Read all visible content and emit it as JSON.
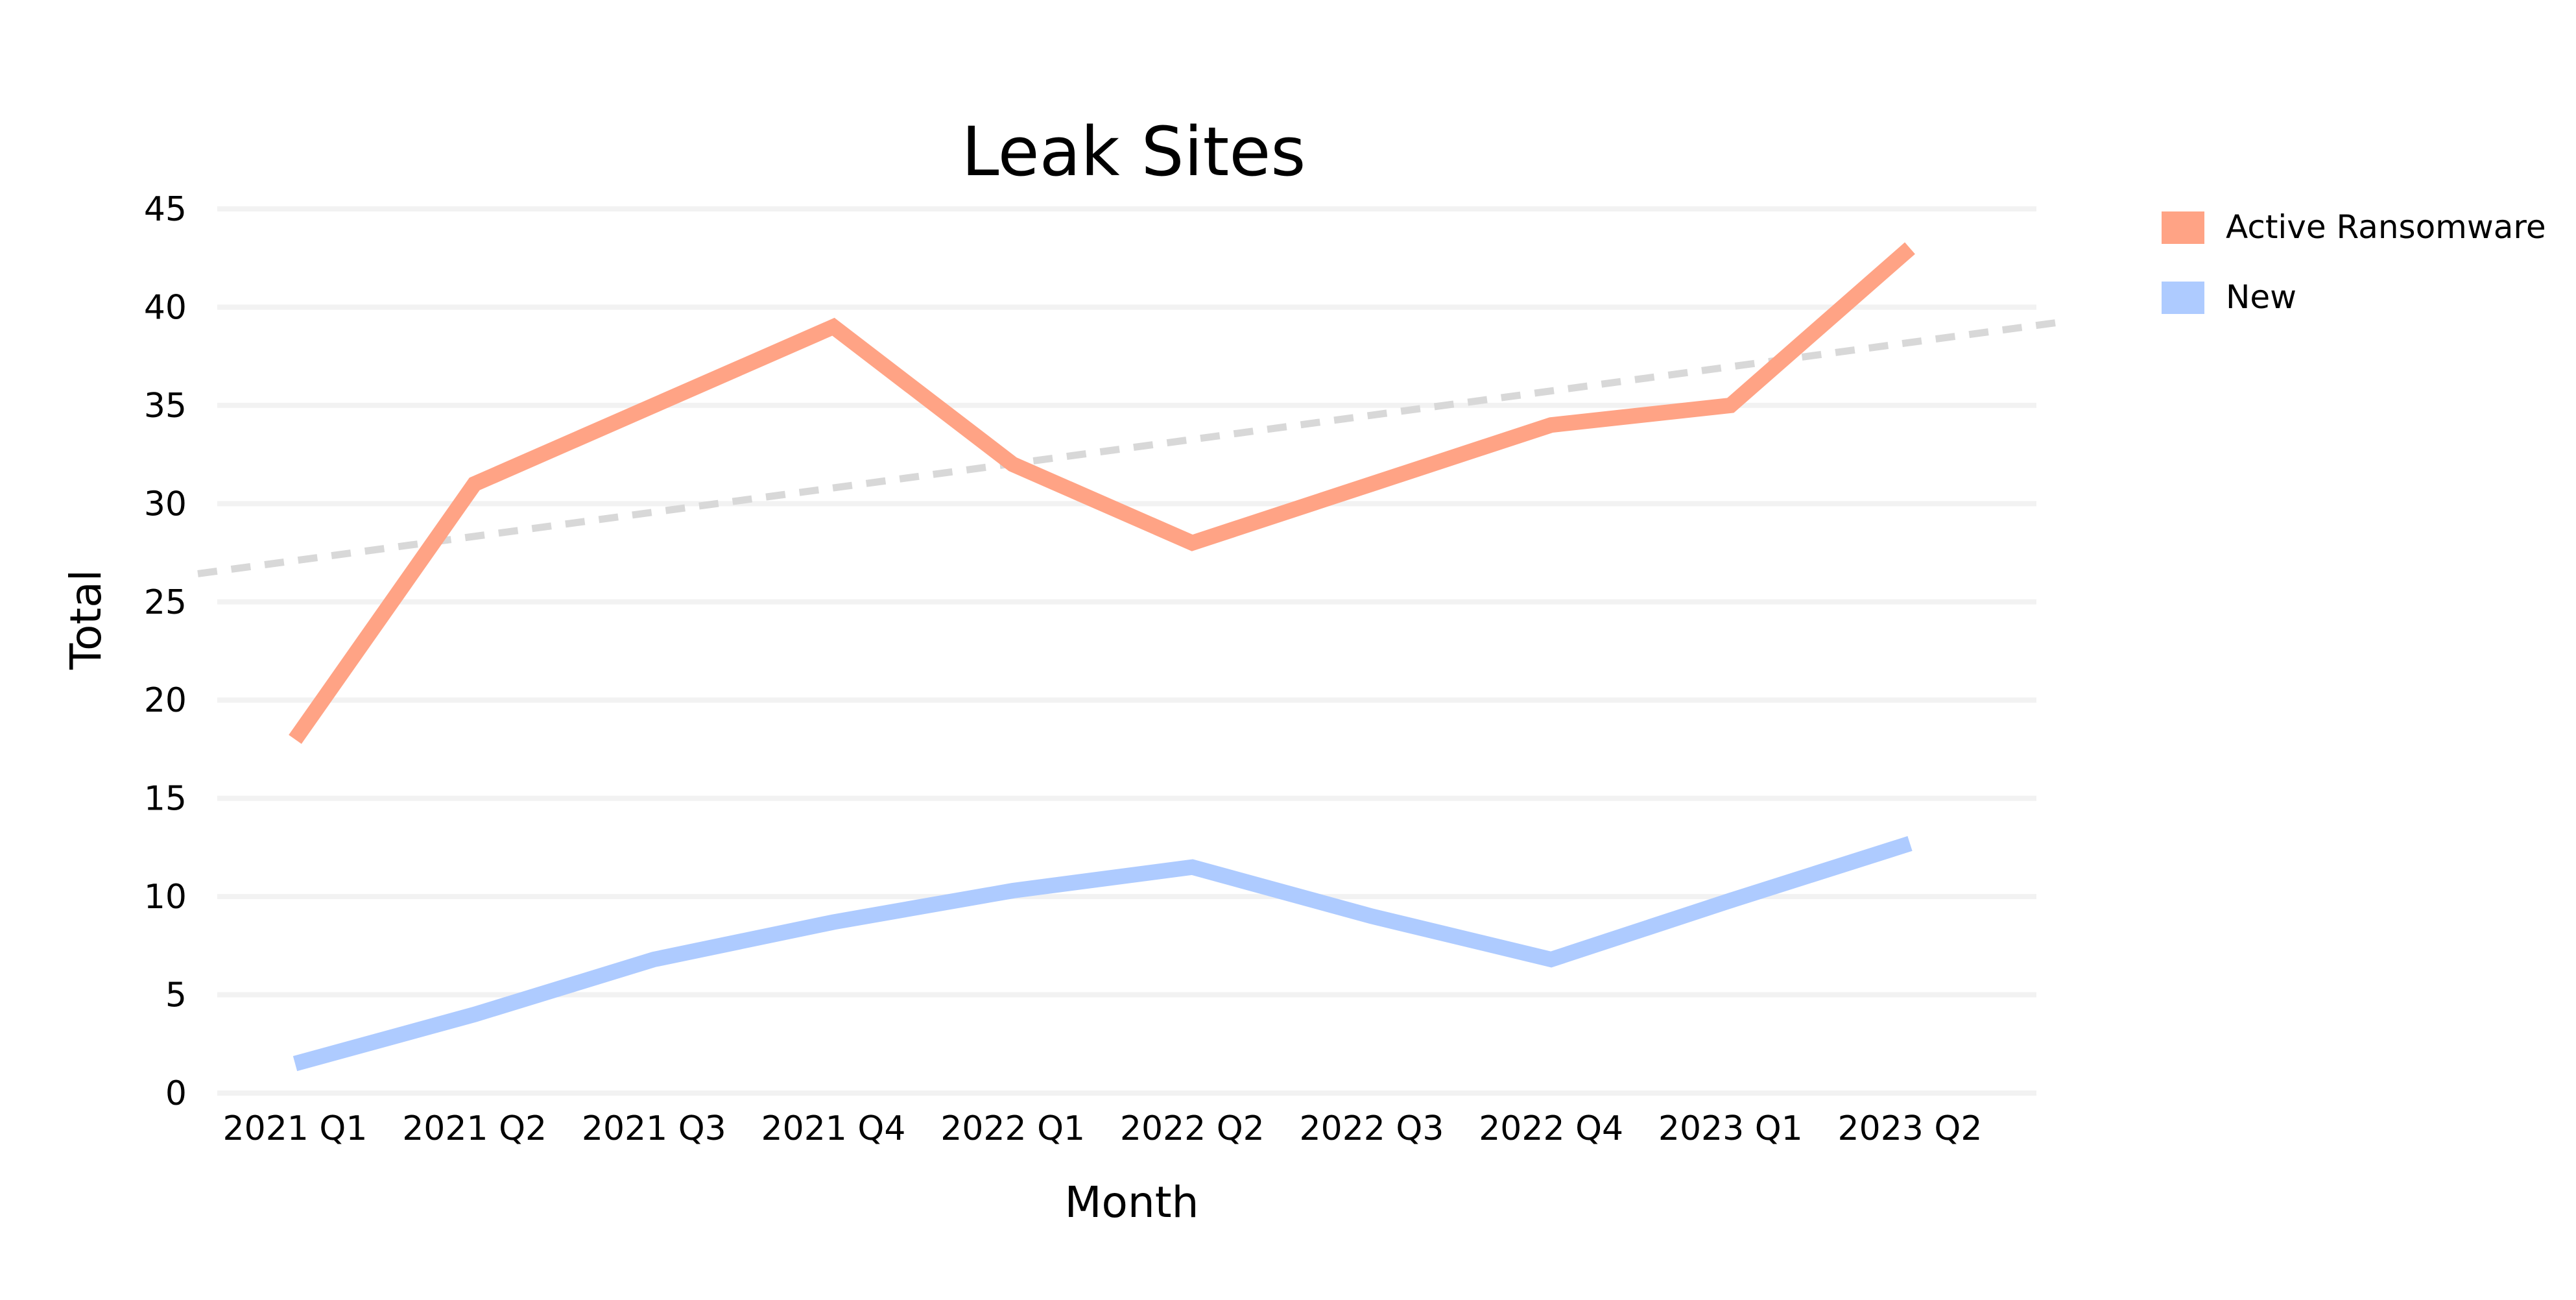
{
  "chart_data": {
    "type": "line",
    "title": "Leak Sites",
    "xlabel": "Month",
    "ylabel": "Total",
    "categories": [
      "2021 Q1",
      "2021 Q2",
      "2021 Q3",
      "2021 Q4",
      "2022 Q1",
      "2022 Q2",
      "2022 Q3",
      "2022 Q4",
      "2023 Q1",
      "2023 Q2"
    ],
    "ylim": [
      0,
      45
    ],
    "yticks": [
      0,
      5,
      10,
      15,
      20,
      25,
      30,
      35,
      40,
      45
    ],
    "grid": true,
    "legend_position": "top-right",
    "series": [
      {
        "name": "Active Ransomware",
        "color": "#FFA385",
        "values": [
          18,
          31,
          35,
          39,
          32,
          28,
          31,
          34,
          35,
          43
        ]
      },
      {
        "name": "New",
        "color": "#AECBFF",
        "values": [
          1.5,
          4,
          6.8,
          8.7,
          10.3,
          11.5,
          9,
          6.8,
          9.8,
          12.7
        ]
      }
    ],
    "trendline": {
      "style": "dashed",
      "color": "#D8D8D8",
      "start": [
        0,
        27.1
      ],
      "end": [
        9,
        38.2
      ]
    }
  }
}
